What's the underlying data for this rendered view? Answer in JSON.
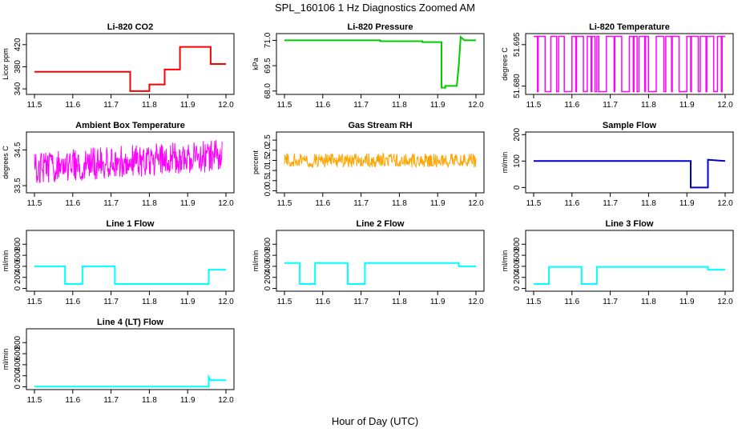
{
  "figure": {
    "title": "SPL_160106  1 Hz Diagnostics Zoomed AM",
    "xlabel": "Hour of Day (UTC)"
  },
  "chart_data": [
    {
      "type": "line",
      "title": "Li-820 CO2",
      "xlabel": "",
      "ylabel": "Licor ppm",
      "color": "#ff0000",
      "xlim": [
        11.5,
        12.0
      ],
      "ylim": [
        330,
        440
      ],
      "xticks": [
        11.5,
        11.6,
        11.7,
        11.8,
        11.9,
        12.0
      ],
      "xtick_labels": [
        "11.5",
        "11.6",
        "11.7",
        "11.8",
        "11.9",
        "12.0"
      ],
      "yticks": [
        340,
        380,
        420
      ],
      "ytick_labels": [
        "340",
        "380",
        "420"
      ],
      "grid": false,
      "style": "step",
      "series": [
        {
          "x": [
            11.5,
            11.75,
            11.75,
            11.8,
            11.8,
            11.84,
            11.84,
            11.88,
            11.88,
            11.96,
            11.96,
            12.0
          ],
          "y": [
            371,
            371,
            336,
            336,
            348,
            348,
            375,
            375,
            416,
            416,
            385,
            385
          ]
        }
      ]
    },
    {
      "type": "line",
      "title": "Li-820 Pressure",
      "xlabel": "",
      "ylabel": "kPa",
      "color": "#00cc00",
      "xlim": [
        11.5,
        12.0
      ],
      "ylim": [
        67.8,
        71.4
      ],
      "xticks": [
        11.5,
        11.6,
        11.7,
        11.8,
        11.9,
        12.0
      ],
      "xtick_labels": [
        "11.5",
        "11.6",
        "11.7",
        "11.8",
        "11.9",
        "12.0"
      ],
      "yticks": [
        68.0,
        69.5,
        71.0
      ],
      "ytick_labels": [
        "68.0",
        "69.5",
        "71.0"
      ],
      "grid": false,
      "style": "step",
      "series": [
        {
          "x": [
            11.5,
            11.75,
            11.75,
            11.86,
            11.86,
            11.91,
            11.91,
            11.92,
            11.92,
            11.95,
            11.955,
            11.96,
            11.97,
            12.0
          ],
          "y": [
            71.0,
            71.0,
            70.95,
            70.95,
            70.9,
            70.9,
            68.2,
            68.2,
            68.3,
            68.3,
            69.5,
            71.2,
            71.0,
            71.0
          ]
        }
      ]
    },
    {
      "type": "line",
      "title": "Li-820 Temperature",
      "xlabel": "",
      "ylabel": "degrees C",
      "color": "#ff00ff",
      "xlim": [
        11.5,
        12.0
      ],
      "ylim": [
        51.677,
        51.699
      ],
      "xticks": [
        11.5,
        11.6,
        11.7,
        11.8,
        11.9,
        12.0
      ],
      "xtick_labels": [
        "11.5",
        "11.6",
        "11.7",
        "11.8",
        "11.9",
        "12.0"
      ],
      "yticks": [
        51.68,
        51.695
      ],
      "ytick_labels": [
        "51.680",
        "51.695"
      ],
      "grid": false,
      "style": "binary",
      "levels": [
        51.678,
        51.698
      ],
      "series": [
        {
          "low_intervals": [
            [
              11.51,
              11.512
            ],
            [
              11.53,
              11.545
            ],
            [
              11.56,
              11.565
            ],
            [
              11.58,
              11.6
            ],
            [
              11.61,
              11.612
            ],
            [
              11.63,
              11.64
            ],
            [
              11.65,
              11.652
            ],
            [
              11.66,
              11.665
            ],
            [
              11.67,
              11.69
            ],
            [
              11.71,
              11.712
            ],
            [
              11.73,
              11.75
            ],
            [
              11.76,
              11.762
            ],
            [
              11.77,
              11.775
            ],
            [
              11.79,
              11.792
            ],
            [
              11.8,
              11.82
            ],
            [
              11.84,
              11.845
            ],
            [
              11.86,
              11.862
            ],
            [
              11.88,
              11.9
            ],
            [
              11.91,
              11.912
            ],
            [
              11.93,
              11.935
            ],
            [
              11.95,
              11.952
            ],
            [
              11.97,
              11.98
            ],
            [
              11.99,
              11.992
            ]
          ]
        }
      ]
    },
    {
      "type": "line",
      "title": "Ambient Box Temperature",
      "xlabel": "",
      "ylabel": "degrees C",
      "color": "#ff00ff",
      "xlim": [
        11.5,
        12.0
      ],
      "ylim": [
        33.3,
        35.0
      ],
      "xticks": [
        11.5,
        11.6,
        11.7,
        11.8,
        11.9,
        12.0
      ],
      "xtick_labels": [
        "11.5",
        "11.6",
        "11.7",
        "11.8",
        "11.9",
        "12.0"
      ],
      "yticks": [
        33.5,
        34.5
      ],
      "ytick_labels": [
        "33.5",
        "34.5"
      ],
      "grid": false,
      "style": "noise",
      "series": [
        {
          "x_start": 11.5,
          "x_end": 11.99,
          "mean_start": 34.0,
          "mean_end": 34.35,
          "amplitude": 0.45
        }
      ]
    },
    {
      "type": "line",
      "title": "Gas Stream RH",
      "xlabel": "",
      "ylabel": "percent",
      "color": "#ffa500",
      "xlim": [
        11.5,
        12.0
      ],
      "ylim": [
        -0.1,
        2.9
      ],
      "xticks": [
        11.5,
        11.6,
        11.7,
        11.8,
        11.9,
        12.0
      ],
      "xtick_labels": [
        "11.5",
        "11.6",
        "11.7",
        "11.8",
        "11.9",
        "12.0"
      ],
      "yticks": [
        0.0,
        0.5,
        1.0,
        1.5,
        2.0,
        2.5
      ],
      "ytick_labels": [
        "0.0",
        "0.5",
        "1.0",
        "1.5",
        "2.0",
        "2.5"
      ],
      "grid": false,
      "style": "noise",
      "series": [
        {
          "x_start": 11.5,
          "x_end": 12.0,
          "mean_start": 1.5,
          "mean_end": 1.5,
          "amplitude": 0.35
        }
      ]
    },
    {
      "type": "line",
      "title": "Sample Flow",
      "xlabel": "",
      "ylabel": "ml/min",
      "color": "#0000cc",
      "xlim": [
        11.5,
        12.0
      ],
      "ylim": [
        -20,
        210
      ],
      "xticks": [
        11.5,
        11.6,
        11.7,
        11.8,
        11.9,
        12.0
      ],
      "xtick_labels": [
        "11.5",
        "11.6",
        "11.7",
        "11.8",
        "11.9",
        "12.0"
      ],
      "yticks": [
        0,
        100,
        200
      ],
      "ytick_labels": [
        "0",
        "100",
        "200"
      ],
      "grid": false,
      "style": "step",
      "series": [
        {
          "x": [
            11.5,
            11.91,
            11.91,
            11.955,
            11.955,
            12.0
          ],
          "y": [
            100,
            100,
            0,
            0,
            105,
            100
          ]
        }
      ]
    },
    {
      "type": "line",
      "title": "Line 1 Flow",
      "xlabel": "",
      "ylabel": "ml/min",
      "color": "#00ffff",
      "xlim": [
        11.5,
        12.0
      ],
      "ylim": [
        -50,
        1050
      ],
      "xticks": [
        11.5,
        11.6,
        11.7,
        11.8,
        11.9,
        12.0
      ],
      "xtick_labels": [
        "11.5",
        "11.6",
        "11.7",
        "11.8",
        "11.9",
        "12.0"
      ],
      "yticks": [
        0,
        200,
        400,
        600,
        800
      ],
      "ytick_labels": [
        "0",
        "200",
        "400",
        "600",
        "800"
      ],
      "grid": false,
      "style": "step",
      "series": [
        {
          "x": [
            11.5,
            11.58,
            11.58,
            11.625,
            11.625,
            11.71,
            11.71,
            11.955,
            11.955,
            12.0
          ],
          "y": [
            400,
            400,
            80,
            80,
            400,
            400,
            80,
            80,
            340,
            340
          ]
        }
      ]
    },
    {
      "type": "line",
      "title": "Line 2 Flow",
      "xlabel": "",
      "ylabel": "ml/min",
      "color": "#00ffff",
      "xlim": [
        11.5,
        12.0
      ],
      "ylim": [
        -50,
        1050
      ],
      "xticks": [
        11.5,
        11.6,
        11.7,
        11.8,
        11.9,
        12.0
      ],
      "xtick_labels": [
        "11.5",
        "11.6",
        "11.7",
        "11.8",
        "11.9",
        "12.0"
      ],
      "yticks": [
        0,
        200,
        400,
        600,
        800
      ],
      "ytick_labels": [
        "0",
        "200",
        "400",
        "600",
        "800"
      ],
      "grid": false,
      "style": "step",
      "series": [
        {
          "x": [
            11.5,
            11.54,
            11.54,
            11.58,
            11.58,
            11.665,
            11.665,
            11.71,
            11.71,
            11.955,
            11.955,
            12.0
          ],
          "y": [
            460,
            460,
            80,
            80,
            460,
            460,
            80,
            80,
            460,
            460,
            400,
            400
          ]
        }
      ]
    },
    {
      "type": "line",
      "title": "Line 3 Flow",
      "xlabel": "",
      "ylabel": "ml/min",
      "color": "#00ffff",
      "xlim": [
        11.5,
        12.0
      ],
      "ylim": [
        -50,
        1050
      ],
      "xticks": [
        11.5,
        11.6,
        11.7,
        11.8,
        11.9,
        12.0
      ],
      "xtick_labels": [
        "11.5",
        "11.6",
        "11.7",
        "11.8",
        "11.9",
        "12.0"
      ],
      "yticks": [
        0,
        200,
        400,
        600,
        800
      ],
      "ytick_labels": [
        "0",
        "200",
        "400",
        "600",
        "800"
      ],
      "grid": false,
      "style": "step",
      "series": [
        {
          "x": [
            11.5,
            11.54,
            11.54,
            11.625,
            11.625,
            11.665,
            11.665,
            11.955,
            11.955,
            12.0
          ],
          "y": [
            80,
            80,
            390,
            390,
            80,
            80,
            390,
            390,
            340,
            340
          ]
        }
      ]
    },
    {
      "type": "line",
      "title": "Line 4 (LT) Flow",
      "xlabel": "",
      "ylabel": "ml/min",
      "color": "#00ffff",
      "xlim": [
        11.5,
        12.0
      ],
      "ylim": [
        -50,
        1050
      ],
      "xticks": [
        11.5,
        11.6,
        11.7,
        11.8,
        11.9,
        12.0
      ],
      "xtick_labels": [
        "11.5",
        "11.6",
        "11.7",
        "11.8",
        "11.9",
        "12.0"
      ],
      "yticks": [
        0,
        200,
        400,
        600,
        800
      ],
      "ytick_labels": [
        "0",
        "200",
        "400",
        "600",
        "800"
      ],
      "grid": false,
      "style": "step",
      "series": [
        {
          "x": [
            11.5,
            11.955,
            11.955,
            11.96,
            11.96,
            12.0
          ],
          "y": [
            5,
            5,
            180,
            120,
            120,
            120
          ]
        }
      ]
    }
  ]
}
